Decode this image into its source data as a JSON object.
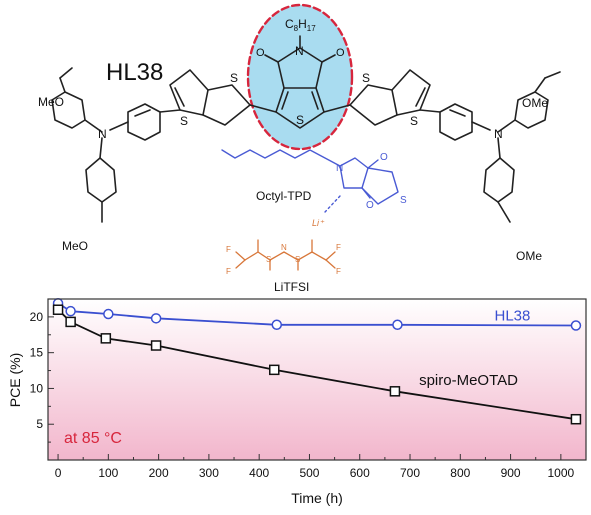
{
  "figure": {
    "compound_label": "HL38",
    "substituent_label": "C8H17",
    "substituent_parts": {
      "base": "C",
      "sub1": "8",
      "mid": "H",
      "sub2": "17"
    },
    "methoxy_label": "MeO",
    "methoxy_label_right": "OMe",
    "octyl_tpd_label": "Octyl-TPD",
    "litfsi_label": "LiTFSI",
    "li_ion_label": "Li⁺",
    "atom_S": "S",
    "atom_N": "N",
    "atom_O": "O",
    "atom_F": "F"
  },
  "colors": {
    "hl38_series": "#3a4fd0",
    "spiro_series": "#111111",
    "annotation_red": "#d7263d",
    "highlight_fill": "#a9dcf0",
    "highlight_dash": "#d7263d",
    "octyl_tpd": "#4a5bd4",
    "litfsi": "#d8773a",
    "plot_bg_top": "#ffffff",
    "plot_bg_bottom": "#f2b6cc"
  },
  "chart_data": {
    "type": "line",
    "xlabel": "Time (h)",
    "ylabel": "PCE (%)",
    "xlim": [
      -20,
      1050
    ],
    "ylim": [
      0,
      22.5
    ],
    "xticks": [
      0,
      100,
      200,
      300,
      400,
      500,
      600,
      700,
      800,
      900,
      1000
    ],
    "yticks": [
      5,
      10,
      15,
      20
    ],
    "annotation": {
      "text": "at 85 °C"
    },
    "series": [
      {
        "name": "HL38",
        "marker": "circle",
        "x": [
          0,
          25,
          100,
          195,
          435,
          675,
          1030
        ],
        "y": [
          21.9,
          20.8,
          20.4,
          19.8,
          18.9,
          18.9,
          18.8
        ]
      },
      {
        "name": "spiro-MeOTAD",
        "marker": "square",
        "x": [
          0,
          25,
          95,
          195,
          430,
          670,
          1030
        ],
        "y": [
          21.0,
          19.3,
          17.0,
          16.0,
          12.6,
          9.6,
          5.7
        ]
      }
    ]
  }
}
